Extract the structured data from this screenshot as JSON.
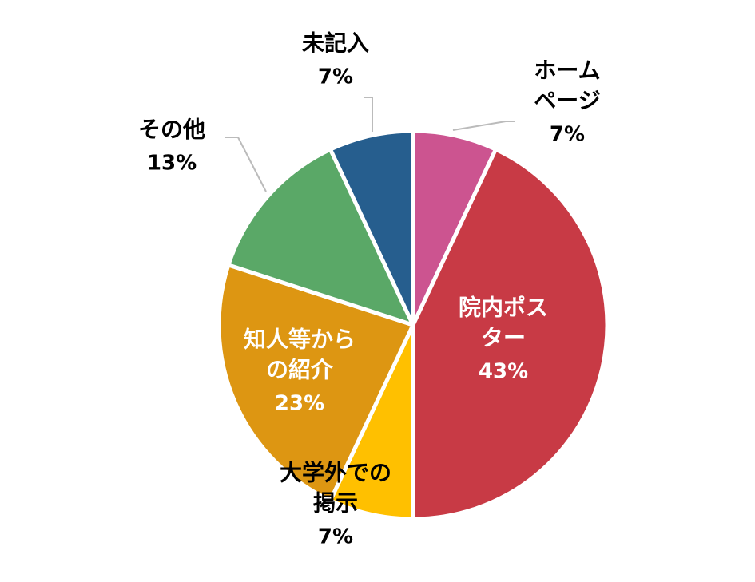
{
  "chart_data": {
    "type": "pie",
    "categories": [
      "ホーム\nページ",
      "院内ポス\nター",
      "大学外での\n掲示",
      "知人等から\nの紹介",
      "その他",
      "未記入"
    ],
    "values": [
      7,
      43,
      7,
      23,
      13,
      7
    ],
    "value_labels": [
      "7%",
      "43%",
      "7%",
      "23%",
      "13%",
      "7%"
    ],
    "colors": [
      "#cc5490",
      "#c83a45",
      "#ffc000",
      "#dd9612",
      "#5aa867",
      "#265e8e"
    ]
  }
}
